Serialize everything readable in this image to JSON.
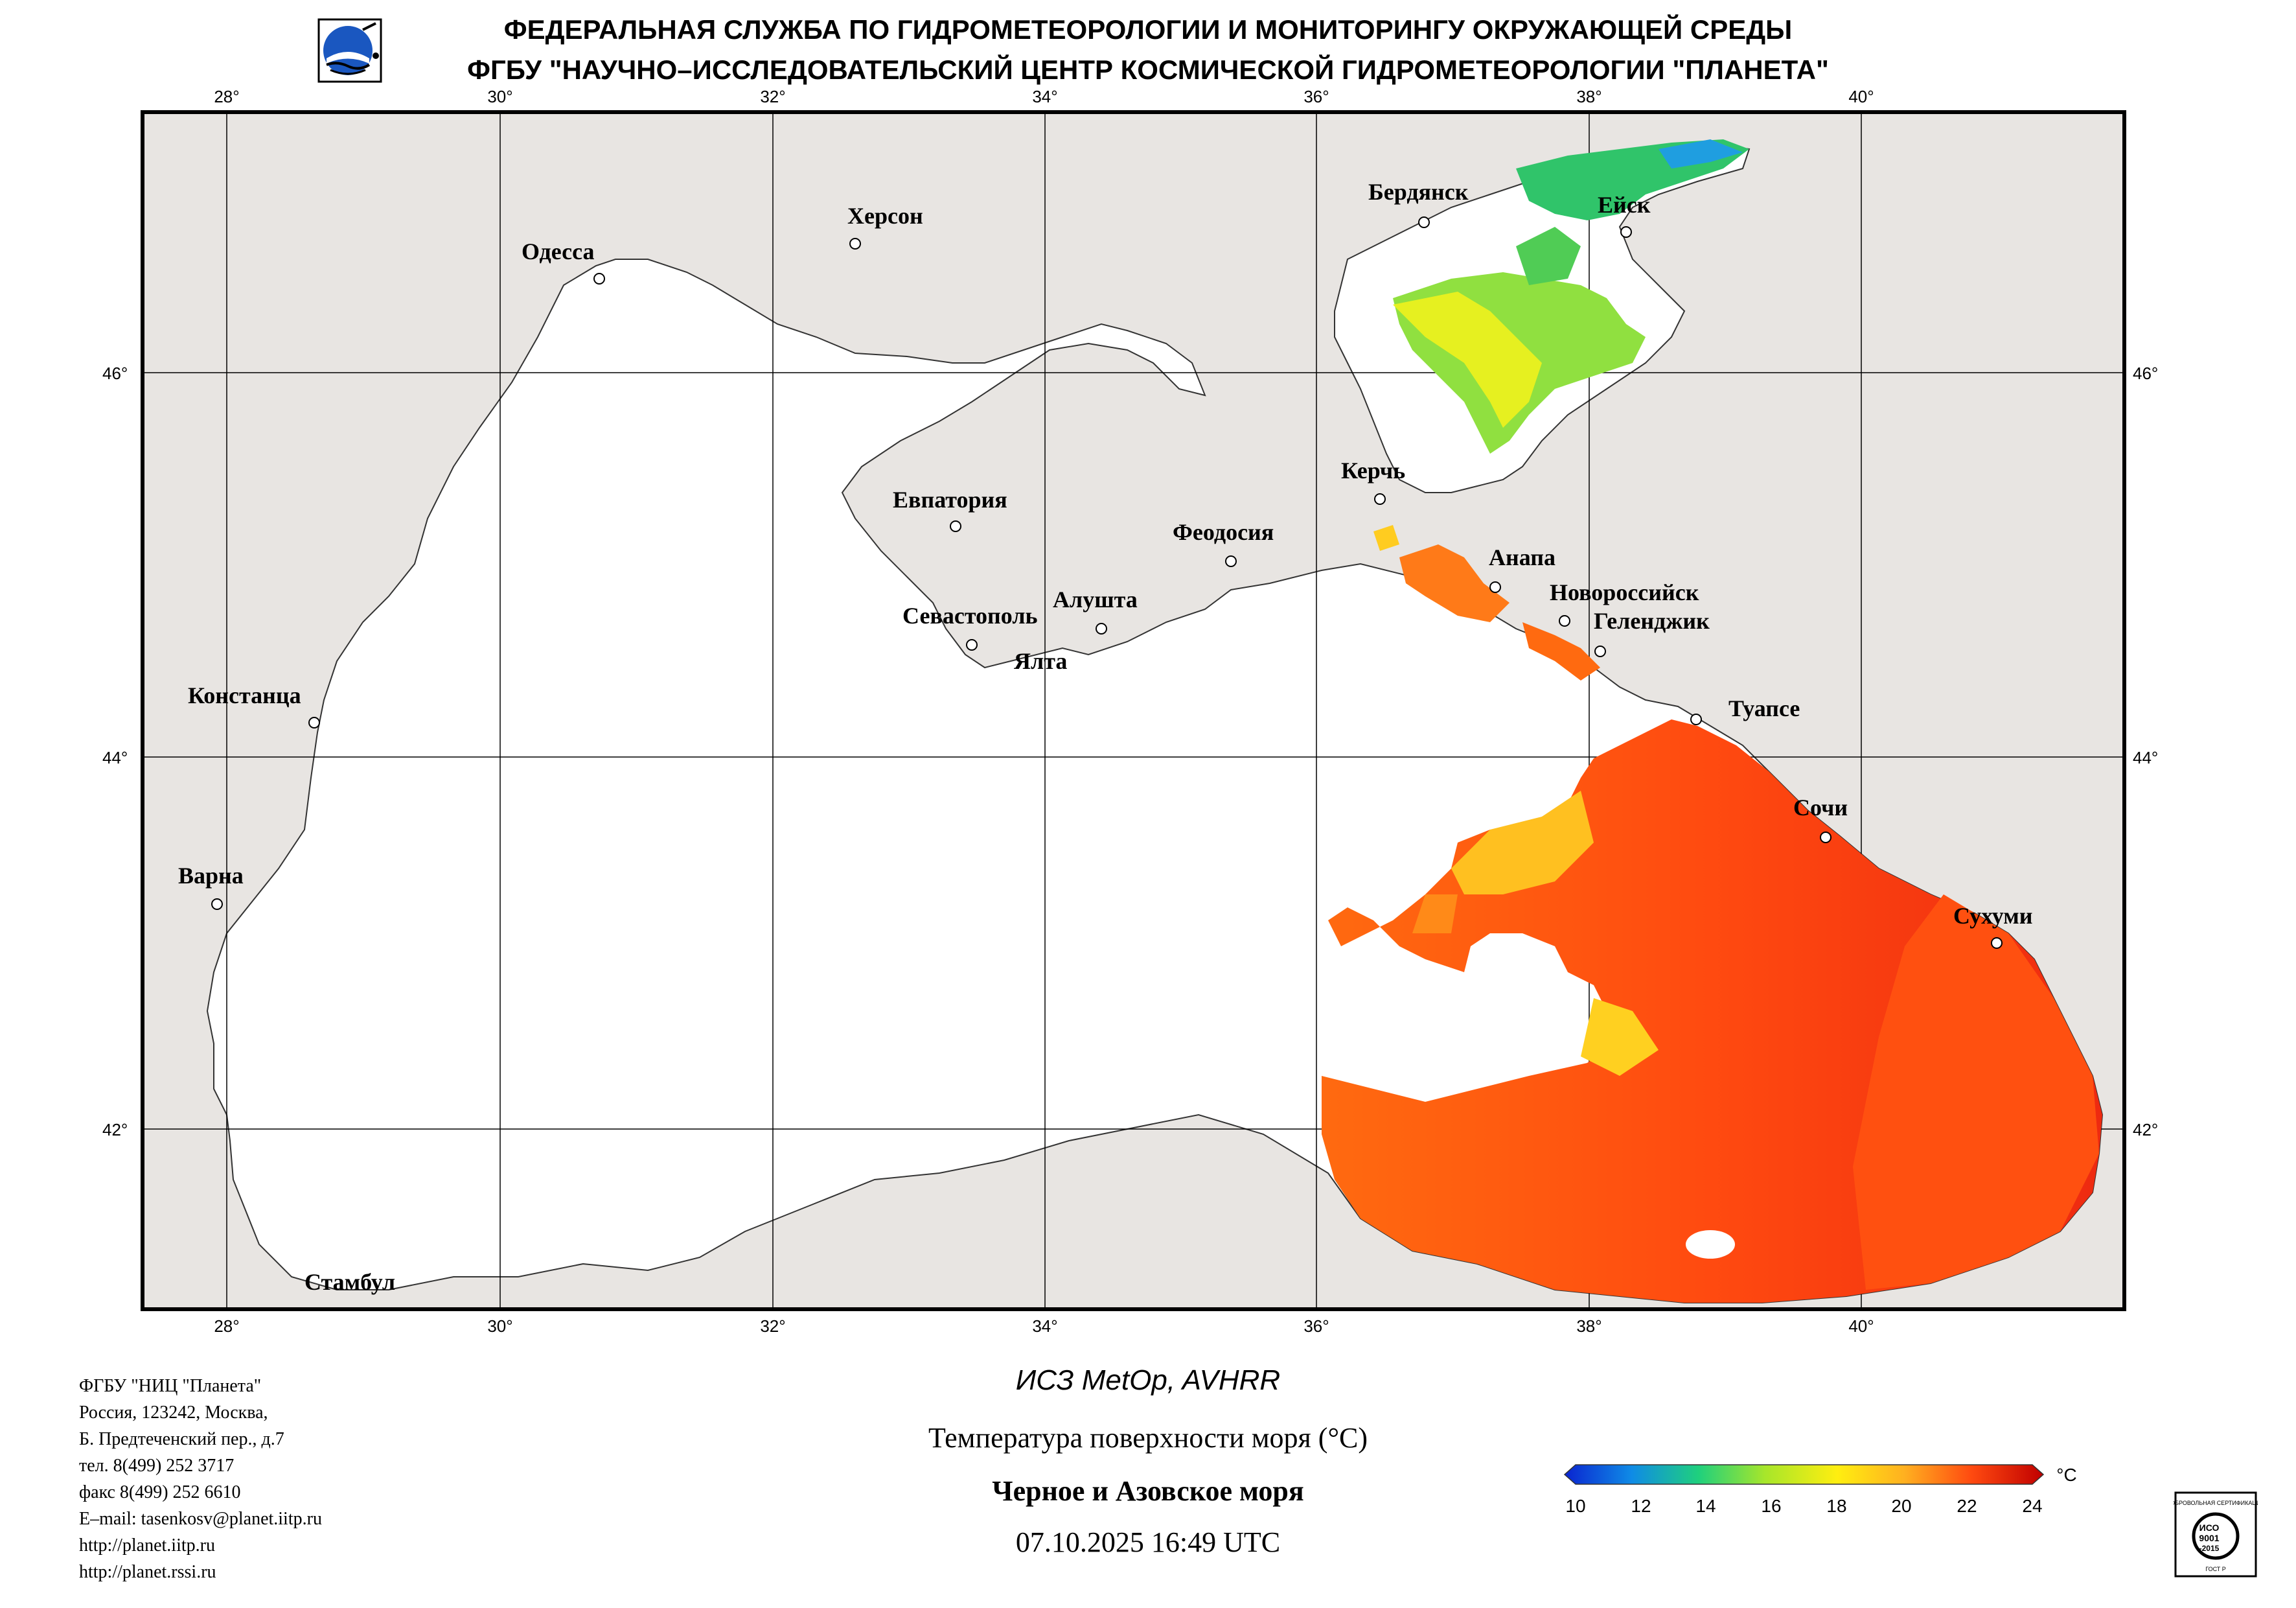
{
  "header": {
    "line1": "ФЕДЕРАЛЬНАЯ СЛУЖБА ПО ГИДРОМЕТЕОРОЛОГИИ И МОНИТОРИНГУ ОКРУЖАЮЩЕЙ СРЕДЫ",
    "line2": "ФГБУ \"НАУЧНО–ИССЛЕДОВАТЕЛЬСКИЙ ЦЕНТР КОСМИЧЕСКОЙ ГИДРОМЕТЕОРОЛОГИИ \"ПЛАНЕТА\""
  },
  "map": {
    "lon_labels": [
      "28°",
      "30°",
      "32°",
      "34°",
      "36°",
      "38°",
      "40°"
    ],
    "lat_labels": [
      "46°",
      "44°",
      "42°"
    ],
    "cities": [
      {
        "name": "Одесса",
        "id": "odessa"
      },
      {
        "name": "Херсон",
        "id": "kherson"
      },
      {
        "name": "Бердянск",
        "id": "berdyansk"
      },
      {
        "name": "Ейск",
        "id": "yeysk"
      },
      {
        "name": "Евпатория",
        "id": "evpatoria"
      },
      {
        "name": "Керчь",
        "id": "kerch"
      },
      {
        "name": "Феодосия",
        "id": "feodosia"
      },
      {
        "name": "Анапа",
        "id": "anapa"
      },
      {
        "name": "Новороссийск",
        "id": "novorossiysk"
      },
      {
        "name": "Геленджик",
        "id": "gelendzhik"
      },
      {
        "name": "Алушта",
        "id": "alushta"
      },
      {
        "name": "Севастополь",
        "id": "sevastopol"
      },
      {
        "name": "Ялта",
        "id": "yalta"
      },
      {
        "name": "Констанца",
        "id": "constanta"
      },
      {
        "name": "Туапсе",
        "id": "tuapse"
      },
      {
        "name": "Сочи",
        "id": "sochi"
      },
      {
        "name": "Варна",
        "id": "varna"
      },
      {
        "name": "Сухуми",
        "id": "sukhumi"
      },
      {
        "name": "Стамбул",
        "id": "istanbul"
      }
    ],
    "colors": {
      "land": "#e8e5e2",
      "sea": "#ffffff",
      "frame": "#000000"
    }
  },
  "legend": {
    "ticks": [
      "10",
      "12",
      "14",
      "16",
      "18",
      "20",
      "22",
      "24"
    ],
    "unit": "°C",
    "min": 10,
    "max": 24,
    "colors": [
      "#0a24d0",
      "#0f8be6",
      "#1fd07d",
      "#a8e62a",
      "#ffee10",
      "#ffb020",
      "#ff6a10",
      "#ee1a1a",
      "#c00000"
    ]
  },
  "footer": {
    "org": "ФГБУ \"НИЦ \"Планета\"",
    "addr1": "Россия, 123242, Москва,",
    "addr2": "Б. Предтеченский пер., д.7",
    "tel": "тел. 8(499) 252 3717",
    "fax": "факс 8(499) 252 6610",
    "email": "E–mail: tasenkosv@planet.iitp.ru",
    "web1": "http://planet.iitp.ru",
    "web2": "http://planet.rssi.ru",
    "satellite": "ИСЗ MetOp, AVHRR",
    "product": "Температура поверхности моря (°C)",
    "region": "Черное и Азовское моря",
    "datetime": "07.10.2025 16:49 UTC"
  },
  "iso_badge": {
    "top": "ДОБРОВОЛЬНАЯ СЕРТИФИКАЦИЯ",
    "iso": "ИСО",
    "num": "9001",
    "year": "-2015",
    "bottom": "ГОСТ Р"
  }
}
